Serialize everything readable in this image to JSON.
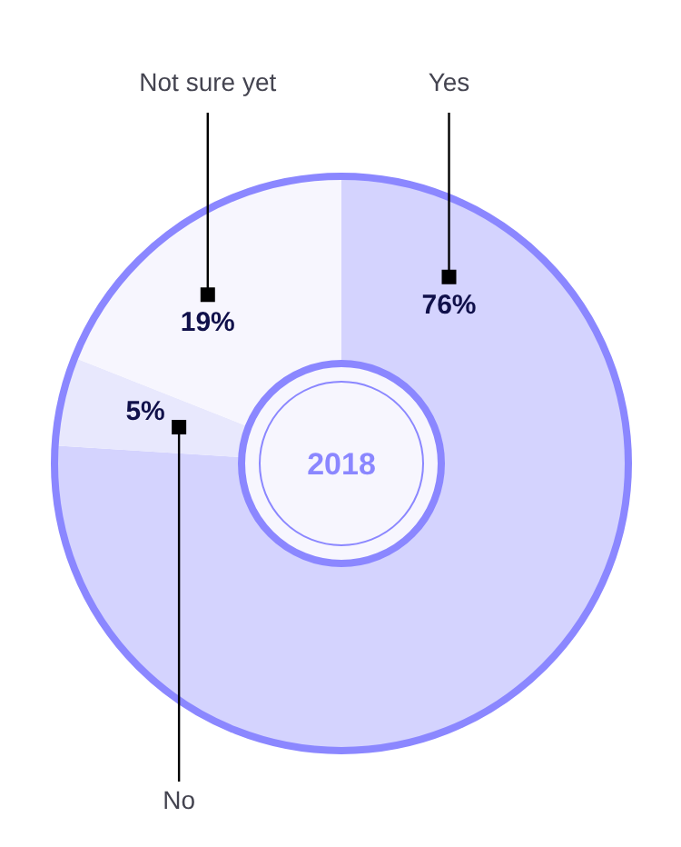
{
  "chart_data": {
    "type": "donut",
    "title": "2018",
    "categories": [
      "Yes",
      "No",
      "Not sure yet"
    ],
    "values": [
      76,
      5,
      19
    ],
    "colors": [
      "#d4d3fe",
      "#e8e8fd",
      "#f7f6fe"
    ],
    "value_labels": [
      "76%",
      "5%",
      "19%"
    ]
  }
}
